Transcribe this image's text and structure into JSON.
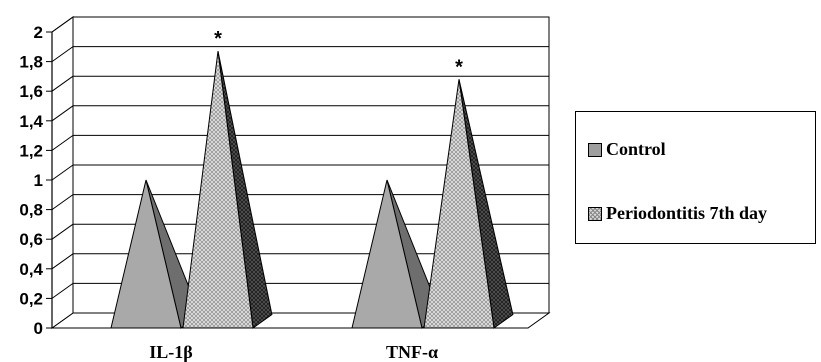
{
  "chart_data": {
    "type": "bar",
    "mark_shape": "pyramid-3d",
    "categories": [
      "IL-1β",
      "TNF-α"
    ],
    "series": [
      {
        "name": "Control",
        "values": [
          1.0,
          1.0
        ],
        "color": "#9e9e9e",
        "side_color": "#666666"
      },
      {
        "name": "Periodontitis 7th day",
        "values": [
          1.87,
          1.68
        ],
        "color": "#d4d4d4",
        "side_color": "#7a7a7a",
        "pattern": "crosshatch"
      }
    ],
    "annotations": [
      {
        "category": "IL-1β",
        "series": "Periodontitis 7th day",
        "text": "*"
      },
      {
        "category": "TNF-α",
        "series": "Periodontitis 7th day",
        "text": "*"
      }
    ],
    "yticks": [
      "0",
      "0,2",
      "0,4",
      "0,6",
      "0,8",
      "1",
      "1,2",
      "1,4",
      "1,6",
      "1,8",
      "2"
    ],
    "ylim": [
      0,
      2
    ],
    "grid": true,
    "legend_position": "right",
    "title": "",
    "xlabel": "",
    "ylabel": ""
  }
}
